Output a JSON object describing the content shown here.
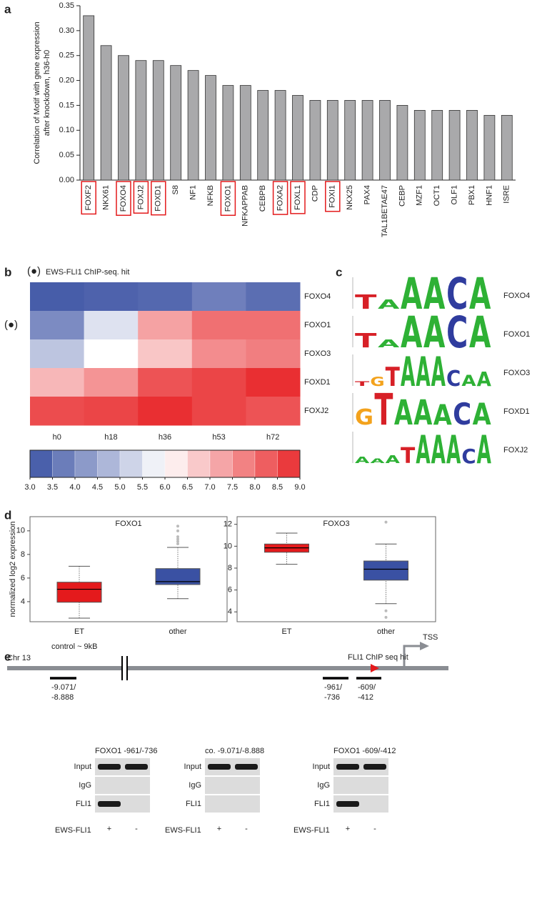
{
  "panels": [
    "a",
    "b",
    "c",
    "d",
    "e"
  ],
  "chart_data": [
    {
      "type": "bar",
      "ylabel": [
        "Correlation of Motif with gene expression",
        "after knockdown, h36-h0"
      ],
      "categories": [
        "FOXF2",
        "NKX61",
        "FOXO4",
        "FOXJ2",
        "FOXD1",
        "S8",
        "NF1",
        "NFKB",
        "FOXO1",
        "NFKAPPAB",
        "CEBPB",
        "FOXA2",
        "FOXL1",
        "CDP",
        "FOXI1",
        "NKX25",
        "PAX4",
        "TAL1BETAE47",
        "CEBP",
        "MZF1",
        "OCT1",
        "OLF1",
        "PBX1",
        "HNF1",
        "ISRE"
      ],
      "values": [
        0.33,
        0.27,
        0.25,
        0.24,
        0.24,
        0.23,
        0.22,
        0.21,
        0.19,
        0.19,
        0.18,
        0.18,
        0.17,
        0.16,
        0.16,
        0.16,
        0.16,
        0.16,
        0.15,
        0.14,
        0.14,
        0.14,
        0.14,
        0.13,
        0.13
      ],
      "color": "#a9a9ab",
      "highlight": [
        true,
        false,
        true,
        true,
        true,
        false,
        false,
        false,
        true,
        false,
        false,
        true,
        true,
        false,
        true,
        false,
        false,
        false,
        false,
        false,
        false,
        false,
        false,
        false,
        false
      ],
      "highlight_color": "#e31a1c",
      "ylim": [
        0,
        0.35
      ],
      "yticks": [
        {
          "value": 0,
          "label": "0.00"
        },
        {
          "value": 0.05,
          "label": "0.05"
        },
        {
          "value": 0.1,
          "label": "0.10"
        },
        {
          "value": 0.15,
          "label": "0.15"
        },
        {
          "value": 0.2,
          "label": "0.20"
        },
        {
          "value": 0.25,
          "label": "0.25"
        },
        {
          "value": 0.3,
          "label": "0.30"
        },
        {
          "value": 0.35,
          "label": "0.35"
        }
      ]
    },
    {
      "type": "heatmap",
      "x": [
        "h0",
        "h18",
        "h36",
        "h53",
        "h72"
      ],
      "y": [
        "FOXO4",
        "FOXO1",
        "FOXO3",
        "FOXD1",
        "FOXJ2"
      ],
      "z": [
        [
          3.2,
          3.3,
          3.4,
          3.8,
          3.5
        ],
        [
          4.0,
          5.5,
          7.3,
          8.0,
          8.0
        ],
        [
          5.0,
          6.0,
          6.8,
          7.6,
          7.8
        ],
        [
          7.0,
          7.5,
          8.4,
          8.6,
          8.9
        ],
        [
          8.5,
          8.6,
          8.9,
          8.6,
          8.4
        ]
      ],
      "zlim": [
        3,
        9
      ],
      "colorscale": [
        "#3a51a3",
        "#ffffff",
        "#e8282b"
      ],
      "zticks": [
        {
          "value": 3,
          "label": "3.0"
        },
        {
          "value": 3.5,
          "label": "3.5"
        },
        {
          "value": 4,
          "label": "4.0"
        },
        {
          "value": 4.5,
          "label": "4.5"
        },
        {
          "value": 5,
          "label": "5.0"
        },
        {
          "value": 5.5,
          "label": "5.5"
        },
        {
          "value": 6,
          "label": "6.0"
        },
        {
          "value": 6.5,
          "label": "6.5"
        },
        {
          "value": 7,
          "label": "7.0"
        },
        {
          "value": 7.5,
          "label": "7.5"
        },
        {
          "value": 8,
          "label": "8.0"
        },
        {
          "value": 8.5,
          "label": "8.5"
        },
        {
          "value": 9,
          "label": "9.0"
        }
      ],
      "marker": "(●)",
      "marker_label": "EWS-FLI1 ChIP-seq. hit",
      "marked_rows": [
        1
      ]
    },
    {
      "type": "box",
      "title": "FOXO1",
      "ylabel": "normalized log2 expression",
      "categories": [
        "ET",
        "other"
      ],
      "colors": [
        "#e41a1c",
        "#3a51a3"
      ],
      "boxes": [
        {
          "whislo": 2.6,
          "q1": 3.95,
          "med": 5.05,
          "q3": 5.65,
          "whishi": 7.0,
          "fliers": []
        },
        {
          "whislo": 4.25,
          "q1": 5.45,
          "med": 5.7,
          "q3": 6.8,
          "whishi": 8.6,
          "fliers": [
            8.9,
            9.1,
            9.3,
            9.5,
            10.0,
            10.4
          ]
        }
      ],
      "ylim": [
        2.3,
        11.2
      ],
      "yticks": [
        4,
        6,
        8,
        10
      ]
    },
    {
      "type": "box",
      "title": "FOXO3",
      "categories": [
        "ET",
        "other"
      ],
      "colors": [
        "#e41a1c",
        "#3a51a3"
      ],
      "boxes": [
        {
          "whislo": 8.35,
          "q1": 9.45,
          "med": 9.85,
          "q3": 10.2,
          "whishi": 11.2,
          "fliers": []
        },
        {
          "whislo": 4.75,
          "q1": 6.9,
          "med": 7.9,
          "q3": 8.65,
          "whishi": 10.2,
          "fliers": [
            4.1,
            3.5,
            12.2
          ]
        }
      ],
      "ylim": [
        3.1,
        12.7
      ],
      "yticks": [
        4,
        6,
        8,
        10,
        12
      ]
    }
  ],
  "motifs": [
    {
      "name": "FOXO4",
      "letters": [
        "T",
        "A",
        "A",
        "A",
        "C",
        "A"
      ],
      "bits": [
        0.9,
        0.6,
        2,
        2,
        2,
        2
      ]
    },
    {
      "name": "FOXO1",
      "letters": [
        "T",
        "A",
        "A",
        "A",
        "C",
        "A"
      ],
      "bits": [
        0.9,
        0.5,
        2,
        2,
        2,
        2
      ]
    },
    {
      "name": "FOXO3",
      "letters": [
        "T",
        "G",
        "T",
        "A",
        "A",
        "A",
        "C",
        "A",
        "A"
      ],
      "bits": [
        0.3,
        0.6,
        1.2,
        1.9,
        1.9,
        1.9,
        1.0,
        0.7,
        0.9
      ]
    },
    {
      "name": "FOXD1",
      "letters": [
        "G",
        "T",
        "A",
        "A",
        "A",
        "C",
        "A"
      ],
      "bits": [
        1.0,
        2,
        1.6,
        1.6,
        1.3,
        1.4,
        1.4
      ]
    },
    {
      "name": "FOXJ2",
      "letters": [
        "A",
        "A",
        "A",
        "T",
        "A",
        "A",
        "A",
        "C",
        "A"
      ],
      "bits": [
        0.4,
        0.3,
        0.5,
        1.0,
        1.8,
        1.8,
        1.8,
        0.9,
        1.8
      ]
    }
  ],
  "diagram": {
    "control": "control ~ 9kB",
    "chromosome": "Chr 13",
    "tss": "TSS",
    "chip_hit": "FLI1 ChIP seq hit",
    "regions": [
      [
        "-9.071/",
        "-8.888"
      ],
      [
        "-961/",
        "-736"
      ],
      [
        "-609/",
        "-412"
      ]
    ]
  },
  "gels": [
    {
      "title": "FOXO1 -961/-736",
      "rows": [
        "Input",
        "IgG",
        "FLI1"
      ],
      "condition": "EWS-FLI1",
      "lanes": [
        "+",
        "-"
      ]
    },
    {
      "title": "co. -9.071/-8.888",
      "rows": [
        "Input",
        "IgG",
        "FLI1"
      ],
      "condition": "EWS-FLI1",
      "lanes": [
        "+",
        "-"
      ]
    },
    {
      "title": "FOXO1 -609/-412",
      "rows": [
        "Input",
        "IgG",
        "FLI1"
      ],
      "condition": "EWS-FLI1",
      "lanes": [
        "+",
        "-"
      ]
    }
  ]
}
